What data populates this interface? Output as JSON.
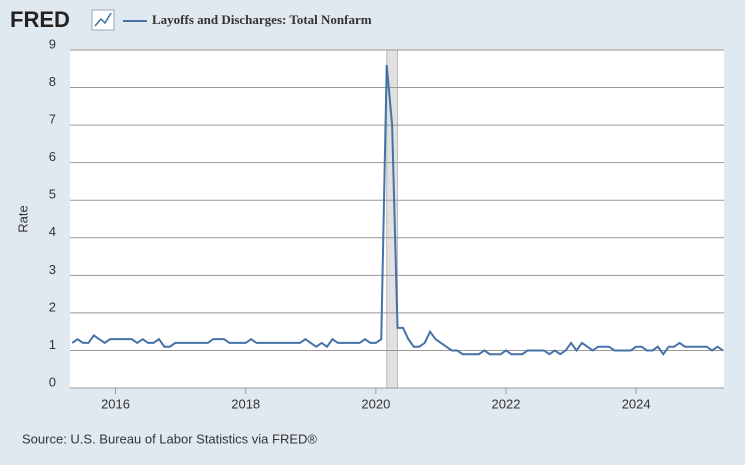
{
  "logo": "FRED",
  "chart_data": {
    "type": "line",
    "y_label": "Rate",
    "source": "Source: U.S. Bureau of Labor Statistics via FRED®",
    "x": [
      2015.333,
      2015.417,
      2015.5,
      2015.583,
      2015.667,
      2015.75,
      2015.833,
      2015.917,
      2016.0,
      2016.083,
      2016.167,
      2016.25,
      2016.333,
      2016.417,
      2016.5,
      2016.583,
      2016.667,
      2016.75,
      2016.833,
      2016.917,
      2017.0,
      2017.083,
      2017.167,
      2017.25,
      2017.333,
      2017.417,
      2017.5,
      2017.583,
      2017.667,
      2017.75,
      2017.833,
      2017.917,
      2018.0,
      2018.083,
      2018.167,
      2018.25,
      2018.333,
      2018.417,
      2018.5,
      2018.583,
      2018.667,
      2018.75,
      2018.833,
      2018.917,
      2019.0,
      2019.083,
      2019.167,
      2019.25,
      2019.333,
      2019.417,
      2019.5,
      2019.583,
      2019.667,
      2019.75,
      2019.833,
      2019.917,
      2020.0,
      2020.083,
      2020.167,
      2020.25,
      2020.333,
      2020.417,
      2020.5,
      2020.583,
      2020.667,
      2020.75,
      2020.833,
      2020.917,
      2021.0,
      2021.083,
      2021.167,
      2021.25,
      2021.333,
      2021.417,
      2021.5,
      2021.583,
      2021.667,
      2021.75,
      2021.833,
      2021.917,
      2022.0,
      2022.083,
      2022.167,
      2022.25,
      2022.333,
      2022.417,
      2022.5,
      2022.583,
      2022.667,
      2022.75,
      2022.833,
      2022.917,
      2023.0,
      2023.083,
      2023.167,
      2023.25,
      2023.333,
      2023.417,
      2023.5,
      2023.583,
      2023.667,
      2023.75,
      2023.833,
      2023.917,
      2024.0,
      2024.083,
      2024.167,
      2024.25,
      2024.333,
      2024.417,
      2024.5,
      2024.583,
      2024.667,
      2024.75,
      2024.833,
      2024.917,
      2025.0,
      2025.083,
      2025.167,
      2025.25,
      2025.333
    ],
    "series": [
      {
        "name": "Layoffs and Discharges: Total Nonfarm",
        "color": "#4572a7",
        "values": [
          1.2,
          1.3,
          1.2,
          1.2,
          1.4,
          1.3,
          1.2,
          1.3,
          1.3,
          1.3,
          1.3,
          1.3,
          1.2,
          1.3,
          1.2,
          1.2,
          1.3,
          1.1,
          1.1,
          1.2,
          1.2,
          1.2,
          1.2,
          1.2,
          1.2,
          1.2,
          1.3,
          1.3,
          1.3,
          1.2,
          1.2,
          1.2,
          1.2,
          1.3,
          1.2,
          1.2,
          1.2,
          1.2,
          1.2,
          1.2,
          1.2,
          1.2,
          1.2,
          1.3,
          1.2,
          1.1,
          1.2,
          1.1,
          1.3,
          1.2,
          1.2,
          1.2,
          1.2,
          1.2,
          1.3,
          1.2,
          1.2,
          1.3,
          8.6,
          7.0,
          1.6,
          1.6,
          1.3,
          1.1,
          1.1,
          1.2,
          1.5,
          1.3,
          1.2,
          1.1,
          1.0,
          1.0,
          0.9,
          0.9,
          0.9,
          0.9,
          1.0,
          0.9,
          0.9,
          0.9,
          1.0,
          0.9,
          0.9,
          0.9,
          1.0,
          1.0,
          1.0,
          1.0,
          0.9,
          1.0,
          0.9,
          1.0,
          1.2,
          1.0,
          1.2,
          1.1,
          1.0,
          1.1,
          1.1,
          1.1,
          1.0,
          1.0,
          1.0,
          1.0,
          1.1,
          1.1,
          1.0,
          1.0,
          1.1,
          0.9,
          1.1,
          1.1,
          1.2,
          1.1,
          1.1,
          1.1,
          1.1,
          1.1,
          1.0,
          1.1,
          1.0
        ]
      }
    ],
    "recession": [
      2020.167,
      2020.333
    ],
    "xlim": [
      2015.3,
      2025.35
    ],
    "xticks": [
      2016,
      2018,
      2020,
      2022,
      2024
    ],
    "ylim": [
      0,
      9
    ],
    "yticks": [
      0,
      1,
      2,
      3,
      4,
      5,
      6,
      7,
      8,
      9
    ],
    "grid": true
  }
}
